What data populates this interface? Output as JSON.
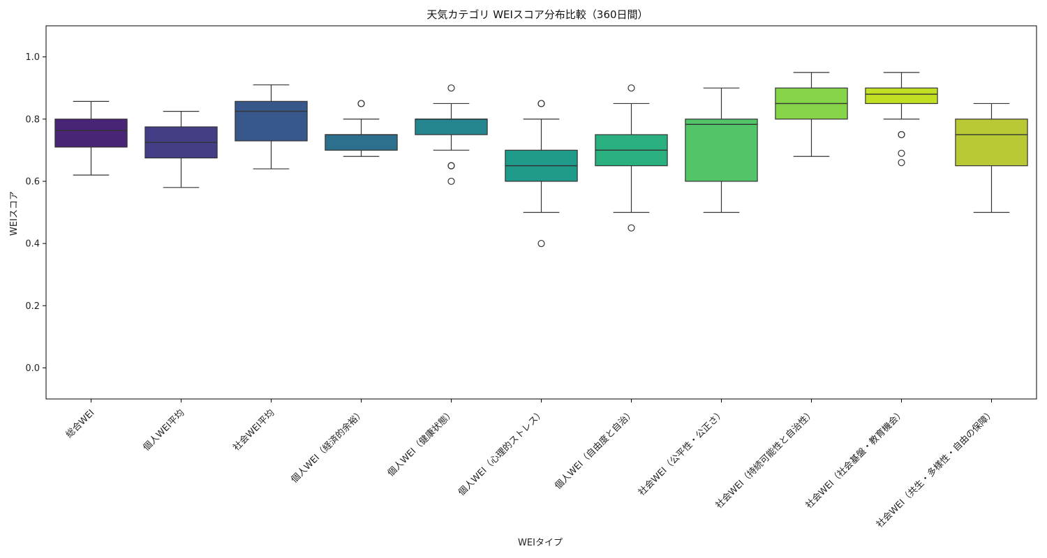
{
  "chart_data": {
    "type": "box",
    "title": "天気カテゴリ WEIスコア分布比較（360日間）",
    "xlabel": "WEIタイプ",
    "ylabel": "WEIスコア",
    "ylim": [
      -0.1,
      1.1
    ],
    "yticks": [
      "0.0",
      "0.2",
      "0.4",
      "0.6",
      "0.8",
      "1.0"
    ],
    "grid": false,
    "categories": [
      "総合WEI",
      "個人WEI平均",
      "社会WEI平均",
      "個人WEI（経済的余裕）",
      "個人WEI（健康状態）",
      "個人WEI（心理的ストレス）",
      "個人WEI（自由度と自治）",
      "社会WEI（公平性・公正さ）",
      "社会WEI（持続可能性と自治性）",
      "社会WEI（社会基盤・教育機会）",
      "社会WEI（共生・多様性・自由の保障）"
    ],
    "colors": [
      "#482576",
      "#433e85",
      "#38588c",
      "#2d708e",
      "#25858e",
      "#1e9b8a",
      "#2ab07f",
      "#52c569",
      "#86d549",
      "#c2df23",
      "#b8c935"
    ],
    "boxes": [
      {
        "whisker_low": 0.62,
        "q1": 0.71,
        "median": 0.763,
        "q3": 0.8,
        "whisker_high": 0.857,
        "outliers": []
      },
      {
        "whisker_low": 0.58,
        "q1": 0.675,
        "median": 0.725,
        "q3": 0.775,
        "whisker_high": 0.825,
        "outliers": []
      },
      {
        "whisker_low": 0.64,
        "q1": 0.73,
        "median": 0.825,
        "q3": 0.857,
        "whisker_high": 0.91,
        "outliers": []
      },
      {
        "whisker_low": 0.68,
        "q1": 0.7,
        "median": 0.75,
        "q3": 0.75,
        "whisker_high": 0.8,
        "outliers": [
          0.85,
          0.85
        ]
      },
      {
        "whisker_low": 0.7,
        "q1": 0.75,
        "median": 0.8,
        "q3": 0.8,
        "whisker_high": 0.85,
        "outliers": [
          0.9,
          0.65,
          0.65,
          0.6
        ]
      },
      {
        "whisker_low": 0.5,
        "q1": 0.6,
        "median": 0.65,
        "q3": 0.7,
        "whisker_high": 0.8,
        "outliers": [
          0.85,
          0.85,
          0.4
        ]
      },
      {
        "whisker_low": 0.5,
        "q1": 0.65,
        "median": 0.7,
        "q3": 0.75,
        "whisker_high": 0.85,
        "outliers": [
          0.9,
          0.45
        ]
      },
      {
        "whisker_low": 0.5,
        "q1": 0.6,
        "median": 0.783,
        "q3": 0.8,
        "whisker_high": 0.9,
        "outliers": []
      },
      {
        "whisker_low": 0.68,
        "q1": 0.8,
        "median": 0.85,
        "q3": 0.9,
        "whisker_high": 0.95,
        "outliers": []
      },
      {
        "whisker_low": 0.8,
        "q1": 0.85,
        "median": 0.88,
        "q3": 0.9,
        "whisker_high": 0.95,
        "outliers": [
          0.75,
          0.75,
          0.69,
          0.66
        ]
      },
      {
        "whisker_low": 0.5,
        "q1": 0.65,
        "median": 0.75,
        "q3": 0.8,
        "whisker_high": 0.85,
        "outliers": []
      }
    ]
  }
}
